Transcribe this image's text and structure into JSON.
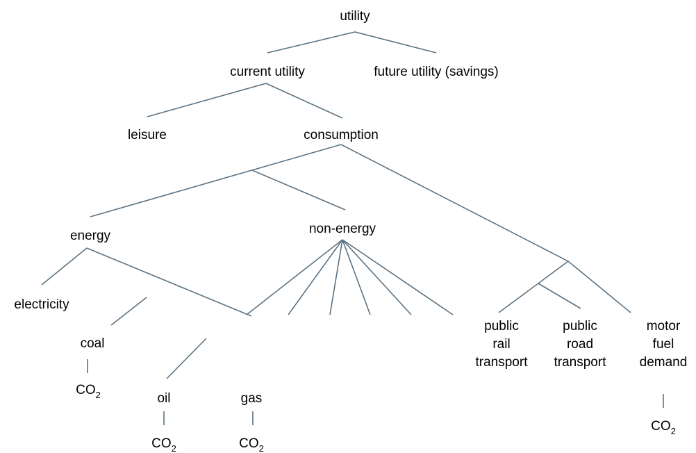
{
  "nodes": [
    {
      "label": "utility"
    },
    {
      "label": "current utility"
    },
    {
      "label": "future utility (savings)"
    },
    {
      "label": "leisure"
    },
    {
      "label": "consumption"
    },
    {
      "label": "energy"
    },
    {
      "label": "non-energy"
    },
    {
      "label": "electricity"
    },
    {
      "label": "coal"
    },
    {
      "label": "oil"
    },
    {
      "label": "gas"
    },
    {
      "lines": [
        "public",
        "rail",
        "transport"
      ]
    },
    {
      "lines": [
        "public",
        "road",
        "transport"
      ]
    },
    {
      "lines": [
        "motor",
        "fuel",
        "demand"
      ]
    },
    {
      "base": "CO",
      "sub": "2"
    },
    {
      "base": "CO",
      "sub": "2"
    },
    {
      "base": "CO",
      "sub": "2"
    },
    {
      "base": "CO",
      "sub": "2"
    }
  ]
}
